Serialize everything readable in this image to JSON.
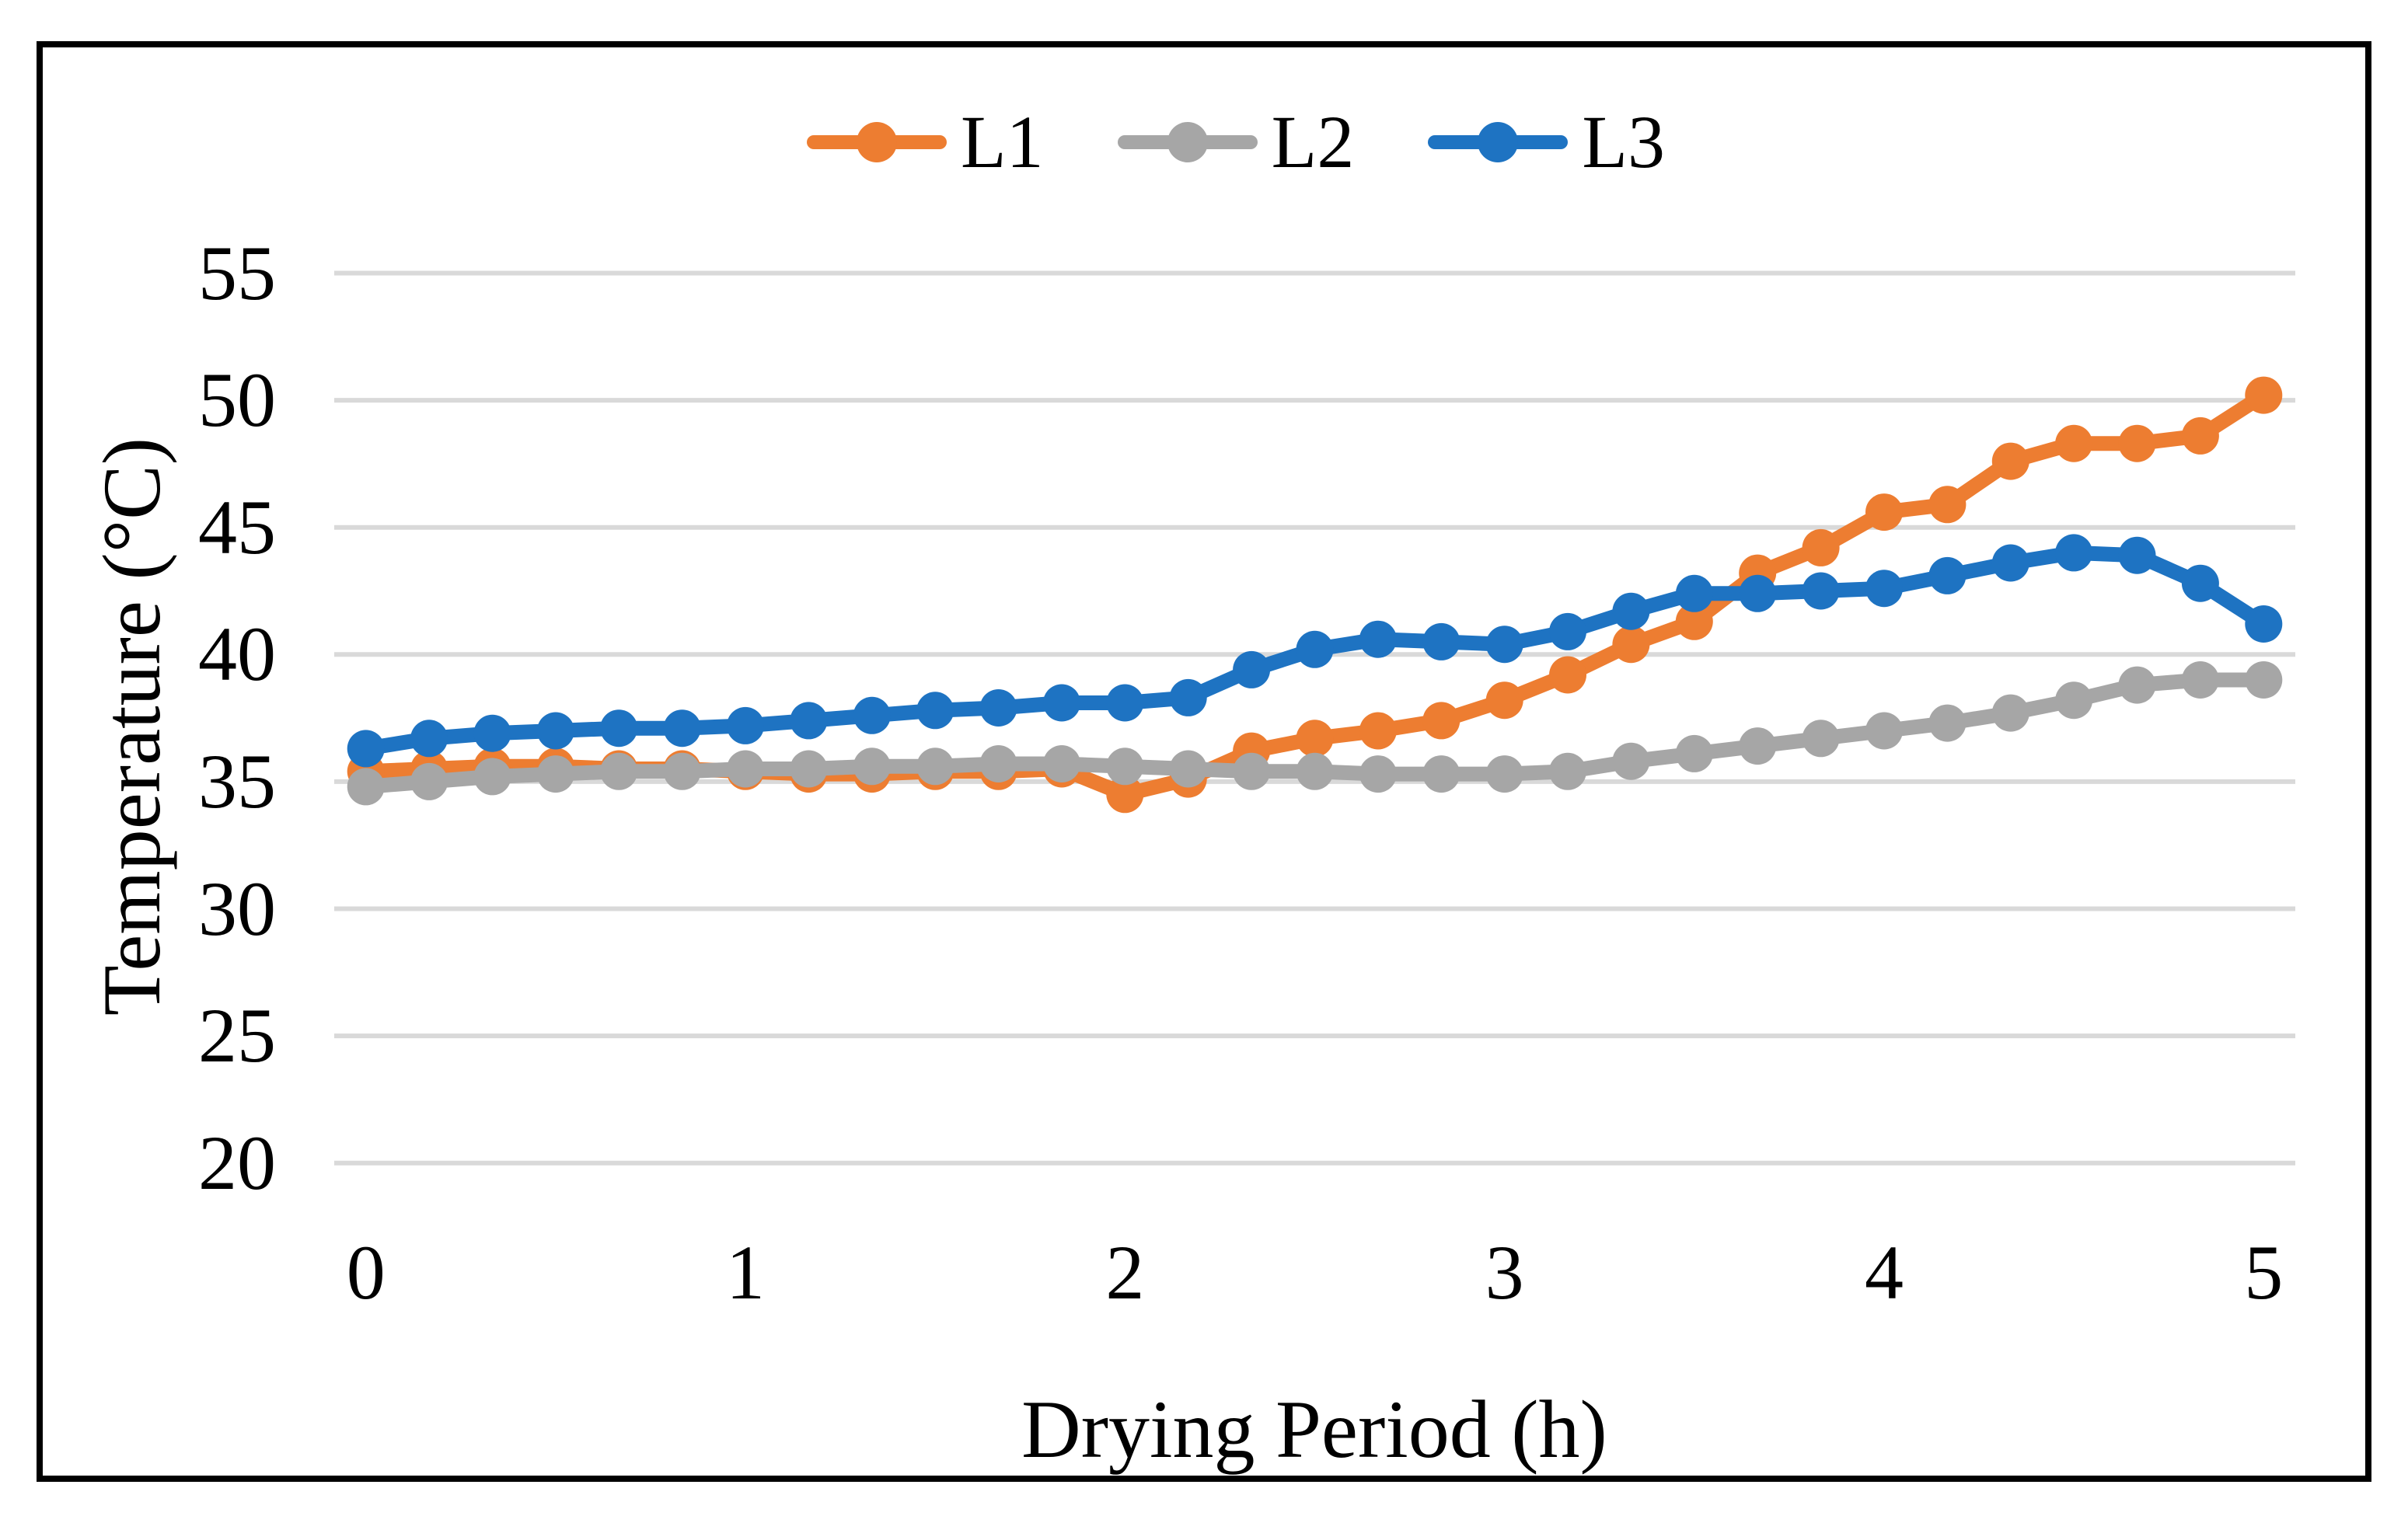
{
  "chart_data": {
    "type": "line",
    "title": "",
    "xlabel": "Drying Period (h)",
    "ylabel": "Temperature (°C)",
    "x_tick_labels": [
      "0",
      "1",
      "2",
      "3",
      "4",
      "5"
    ],
    "y_tick_labels": [
      "55",
      "50",
      "45",
      "40",
      "35",
      "30",
      "25",
      "20"
    ],
    "ylim": [
      20,
      55
    ],
    "ytick_step": 5,
    "grid": true,
    "grid_color": "#D9D9D9",
    "legend_position": "top",
    "marker": "circle",
    "x": [
      0,
      0.17,
      0.33,
      0.5,
      0.67,
      0.83,
      1,
      1.17,
      1.33,
      1.5,
      1.67,
      1.83,
      2,
      2.17,
      2.33,
      2.5,
      2.67,
      2.83,
      3,
      3.17,
      3.33,
      3.5,
      3.67,
      3.83,
      4,
      4.17,
      4.33,
      4.5,
      4.67,
      4.83,
      5
    ],
    "series": [
      {
        "name": "L1",
        "color": "#ED7D31",
        "values": [
          35.4,
          35.5,
          35.6,
          35.6,
          35.5,
          35.5,
          35.4,
          35.3,
          35.3,
          35.4,
          35.4,
          35.5,
          34.5,
          35.1,
          36.2,
          36.7,
          37.0,
          37.4,
          38.2,
          39.2,
          40.4,
          41.3,
          43.2,
          44.2,
          45.6,
          45.9,
          47.6,
          48.3,
          48.3,
          48.6,
          50.2
        ]
      },
      {
        "name": "L2",
        "color": "#A6A6A6",
        "values": [
          34.8,
          35.0,
          35.2,
          35.3,
          35.4,
          35.4,
          35.5,
          35.5,
          35.6,
          35.6,
          35.7,
          35.7,
          35.6,
          35.5,
          35.4,
          35.4,
          35.3,
          35.3,
          35.3,
          35.4,
          35.8,
          36.1,
          36.4,
          36.7,
          37.0,
          37.3,
          37.7,
          38.2,
          38.8,
          39.0,
          39.0
        ]
      },
      {
        "name": "L3",
        "color": "#1E73C2",
        "values": [
          36.3,
          36.7,
          36.9,
          37.0,
          37.1,
          37.1,
          37.2,
          37.4,
          37.6,
          37.8,
          37.9,
          38.1,
          38.1,
          38.3,
          39.4,
          40.2,
          40.6,
          40.5,
          40.4,
          40.9,
          41.7,
          42.4,
          42.4,
          42.5,
          42.6,
          43.1,
          43.6,
          44.0,
          43.9,
          42.8,
          41.2
        ]
      }
    ]
  }
}
